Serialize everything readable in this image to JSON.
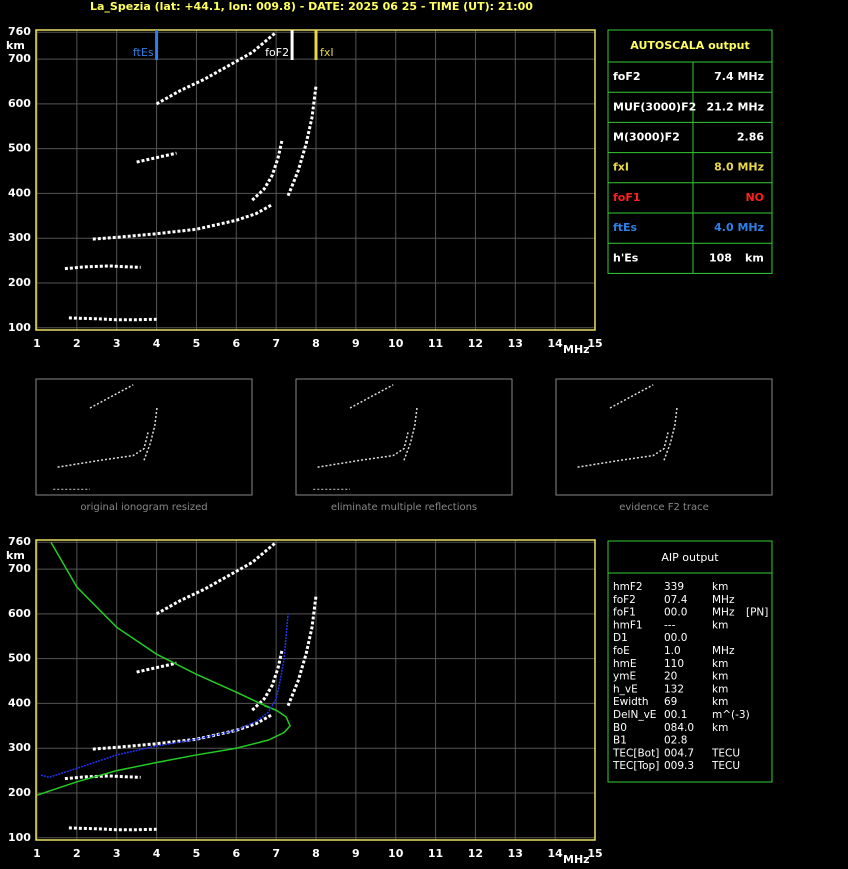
{
  "title": "La_Spezia (lat: +44.1, lon: 009.8) - DATE: 2025 06 25 - TIME (UT): 21:00",
  "chart_data": [
    {
      "type": "line",
      "x_label": "MHz",
      "y_label": "km",
      "xlim": [
        1,
        15
      ],
      "ylim": [
        95,
        765
      ],
      "xticks": [
        1,
        2,
        3,
        4,
        5,
        6,
        7,
        8,
        9,
        10,
        11,
        12,
        13,
        14,
        15
      ],
      "yticks": [
        100,
        200,
        300,
        400,
        500,
        600,
        700,
        760
      ],
      "grid": true,
      "markers": [
        {
          "label": "ftEs",
          "value": 4.0,
          "color": "#2f7fe8"
        },
        {
          "label": "foF2",
          "value": 7.4,
          "color": "#ffffff"
        },
        {
          "label": "fxI",
          "value": 8.0,
          "color": "#e8d84a"
        }
      ],
      "series": [
        {
          "color": "#ffffff",
          "x": [
            1.8,
            2.5,
            3.0,
            3.5,
            4.0
          ],
          "values": [
            122,
            120,
            118,
            118,
            119
          ]
        },
        {
          "color": "#ffffff",
          "x": [
            1.7,
            2.2,
            2.8,
            3.3,
            3.6
          ],
          "values": [
            232,
            236,
            238,
            236,
            235
          ]
        },
        {
          "color": "#ffffff",
          "x": [
            2.4,
            3.0,
            4.0,
            5.0,
            6.0,
            6.5,
            6.9
          ],
          "values": [
            298,
            302,
            310,
            320,
            340,
            355,
            375
          ]
        },
        {
          "color": "#ffffff",
          "x": [
            6.4,
            6.7,
            6.9,
            7.05,
            7.15
          ],
          "values": [
            385,
            410,
            440,
            480,
            520
          ]
        },
        {
          "color": "#ffffff",
          "x": [
            7.3,
            7.55,
            7.75,
            7.9,
            8.0
          ],
          "values": [
            395,
            450,
            510,
            570,
            640
          ]
        },
        {
          "color": "#ffffff",
          "x": [
            3.5,
            4.0,
            4.5
          ],
          "values": [
            470,
            480,
            490
          ]
        },
        {
          "color": "#ffffff",
          "x": [
            4.0,
            4.6,
            5.2,
            5.8,
            6.4,
            7.0
          ],
          "values": [
            600,
            630,
            655,
            685,
            715,
            760
          ]
        }
      ]
    },
    {
      "type": "line",
      "x_label": "MHz",
      "y_label": "km",
      "xlim": [
        1,
        15
      ],
      "ylim": [
        95,
        765
      ],
      "xticks": [
        1,
        2,
        3,
        4,
        5,
        6,
        7,
        8,
        9,
        10,
        11,
        12,
        13,
        14,
        15
      ],
      "yticks": [
        100,
        200,
        300,
        400,
        500,
        600,
        700,
        760
      ],
      "grid": true,
      "series": [
        {
          "color": "#ffffff",
          "x": [
            1.8,
            2.5,
            3.0,
            3.5,
            4.0
          ],
          "values": [
            122,
            120,
            118,
            118,
            119
          ]
        },
        {
          "color": "#ffffff",
          "x": [
            1.7,
            2.2,
            2.8,
            3.3,
            3.6
          ],
          "values": [
            232,
            236,
            238,
            236,
            235
          ]
        },
        {
          "color": "#ffffff",
          "x": [
            2.4,
            3.0,
            4.0,
            5.0,
            6.0,
            6.5,
            6.9
          ],
          "values": [
            298,
            302,
            310,
            320,
            340,
            355,
            375
          ]
        },
        {
          "color": "#ffffff",
          "x": [
            6.4,
            6.7,
            6.9,
            7.05,
            7.15
          ],
          "values": [
            385,
            410,
            440,
            480,
            520
          ]
        },
        {
          "color": "#ffffff",
          "x": [
            7.3,
            7.55,
            7.75,
            7.9,
            8.0
          ],
          "values": [
            395,
            450,
            510,
            570,
            640
          ]
        },
        {
          "color": "#ffffff",
          "x": [
            3.5,
            4.0,
            4.5
          ],
          "values": [
            470,
            480,
            490
          ]
        },
        {
          "color": "#ffffff",
          "x": [
            4.0,
            4.6,
            5.2,
            5.8,
            6.4,
            7.0
          ],
          "values": [
            600,
            630,
            655,
            685,
            715,
            760
          ]
        },
        {
          "color": "#22cc22",
          "x": [
            1.35,
            2.0,
            3.0,
            4.0,
            5.0,
            6.0,
            6.6,
            7.0
          ],
          "values": [
            760,
            660,
            570,
            510,
            465,
            425,
            400,
            385
          ]
        },
        {
          "color": "#22cc22",
          "x": [
            1.0,
            2.0,
            3.0,
            4.0,
            5.0,
            6.0,
            6.8,
            7.2,
            7.35,
            7.25,
            7.0,
            6.7
          ],
          "values": [
            195,
            225,
            250,
            268,
            285,
            300,
            318,
            335,
            350,
            370,
            385,
            395
          ]
        },
        {
          "color": "#2233ee",
          "x": [
            1.1,
            1.3,
            2.0,
            3.0,
            4.0,
            5.0,
            6.0,
            6.5,
            6.8,
            7.0,
            7.1,
            7.2,
            7.3
          ],
          "values": [
            240,
            235,
            255,
            285,
            305,
            320,
            340,
            360,
            380,
            410,
            450,
            500,
            600
          ]
        }
      ]
    }
  ],
  "thumbnails": [
    {
      "caption": "original ionogram resized"
    },
    {
      "caption": "eliminate multiple reflections"
    },
    {
      "caption": "evidence F2 trace"
    }
  ],
  "autoscala": {
    "title": "AUTOSCALA output",
    "rows": [
      {
        "cells": [
          "foF2",
          "7.4 MHz"
        ],
        "color": "#ffffff"
      },
      {
        "cells": [
          "MUF(3000)F2",
          "21.2 MHz"
        ],
        "color": "#ffffff"
      },
      {
        "cells": [
          "M(3000)F2",
          "2.86"
        ],
        "color": "#ffffff"
      },
      {
        "cells": [
          "fxI",
          "8.0 MHz"
        ],
        "color": "#e8d84a"
      },
      {
        "cells": [
          "foF1",
          "NO"
        ],
        "color": "#ff2020"
      },
      {
        "cells": [
          "ftEs",
          "4.0 MHz"
        ],
        "color": "#2f7fe8"
      },
      {
        "cells": [
          "h'Es",
          "108",
          "km"
        ],
        "color": "#ffffff"
      }
    ]
  },
  "aip": {
    "title": "AIP output",
    "rows": [
      [
        "hmF2",
        "339",
        "km"
      ],
      [
        "foF2",
        "07.4",
        "MHz"
      ],
      [
        "foF1",
        "00.0",
        "MHz",
        "[PN]"
      ],
      [
        "hmF1",
        "---",
        "km"
      ],
      [
        "D1",
        "00.0"
      ],
      [
        "foE",
        "1.0",
        "MHz"
      ],
      [
        "hmE",
        "110",
        "km"
      ],
      [
        "ymE",
        "20",
        "km"
      ],
      [
        "h_vE",
        "132",
        "km"
      ],
      [
        "Ewidth",
        "69",
        "km"
      ],
      [
        "DelN_vE",
        "00.1",
        "m^(-3)"
      ],
      [
        "B0",
        "084.0",
        "km"
      ],
      [
        "B1",
        "02.8"
      ],
      [
        "TEC[Bot]",
        "004.7",
        "TECU"
      ],
      [
        "TEC[Top]",
        "009.3",
        "TECU"
      ]
    ]
  }
}
